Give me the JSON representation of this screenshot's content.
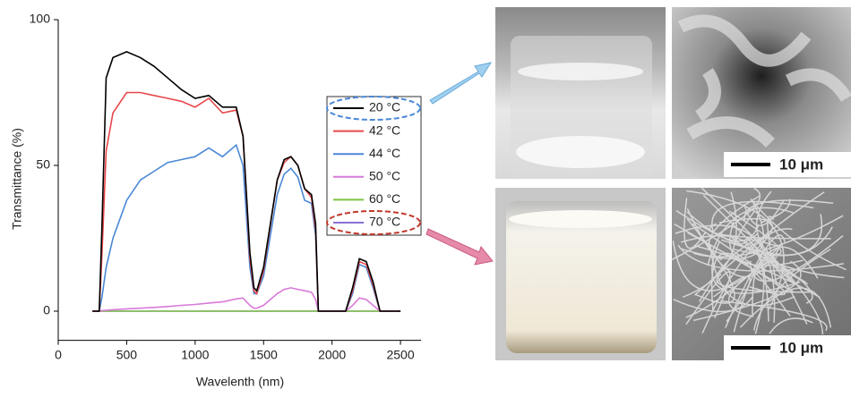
{
  "chart_data": {
    "type": "line",
    "x_label": "Wavelenth (nm)",
    "y_label": "Transmittance (%)",
    "x": [
      250,
      300,
      320,
      350,
      400,
      500,
      600,
      700,
      800,
      900,
      1000,
      1100,
      1200,
      1300,
      1350,
      1400,
      1430,
      1450,
      1500,
      1600,
      1650,
      1700,
      1750,
      1800,
      1850,
      1880,
      1900,
      1950,
      2000,
      2050,
      2100,
      2150,
      2200,
      2250,
      2300,
      2350,
      2400,
      2450,
      2500
    ],
    "series": [
      {
        "name": "20 °C",
        "color": "#000000",
        "values": [
          0,
          0,
          30,
          80,
          87,
          89,
          87,
          84,
          80,
          76,
          73,
          74,
          70,
          70,
          60,
          20,
          8,
          7,
          15,
          45,
          52,
          53,
          50,
          42,
          40,
          30,
          0,
          0,
          0,
          0,
          0,
          8,
          18,
          17,
          10,
          0,
          0,
          0,
          0
        ]
      },
      {
        "name": "42 °C",
        "color": "#e8474a",
        "values": [
          0,
          0,
          20,
          55,
          68,
          75,
          75,
          74,
          73,
          72,
          70,
          73,
          68,
          69,
          60,
          18,
          7,
          6,
          14,
          45,
          51,
          53,
          50,
          42,
          39,
          28,
          0,
          0,
          0,
          0,
          0,
          7,
          17,
          16,
          9,
          0,
          0,
          0,
          0
        ]
      },
      {
        "name": "44 °C",
        "color": "#4a88d6",
        "values": [
          0,
          0,
          5,
          15,
          25,
          38,
          45,
          48,
          51,
          52,
          53,
          56,
          53,
          57,
          50,
          15,
          6,
          6,
          12,
          40,
          47,
          49,
          46,
          38,
          37,
          26,
          0,
          0,
          0,
          0,
          0,
          6,
          16,
          15,
          8,
          0,
          0,
          0,
          0
        ]
      },
      {
        "name": "50 °C",
        "color": "#d87ad8",
        "values": [
          0,
          0,
          0.2,
          0.3,
          0.5,
          0.8,
          1,
          1.3,
          1.6,
          2,
          2.3,
          2.8,
          3.2,
          4.2,
          4.5,
          2,
          1,
          1,
          2,
          6,
          7.5,
          8,
          7.5,
          7,
          6.5,
          4,
          0,
          0,
          0,
          0,
          0,
          2,
          4.5,
          4,
          2,
          0,
          0,
          0,
          0
        ]
      },
      {
        "name": "60 °C",
        "color": "#7cc242",
        "values": [
          0,
          0,
          0,
          0,
          0,
          0,
          0,
          0,
          0,
          0,
          0,
          0,
          0,
          0,
          0,
          0,
          0,
          0,
          0,
          0,
          0,
          0,
          0,
          0,
          0,
          0,
          0,
          0,
          0,
          0,
          0,
          0,
          0,
          0,
          0,
          0,
          0,
          0,
          0
        ]
      },
      {
        "name": "70 °C",
        "color": "#8a70d6",
        "values": [
          0,
          0,
          0,
          0,
          0,
          0,
          0,
          0,
          0,
          0,
          0,
          0,
          0,
          0,
          0,
          0,
          0,
          0,
          0,
          0,
          0,
          0,
          0,
          0,
          0,
          0,
          0,
          0,
          0,
          0,
          0,
          0,
          0,
          0,
          0,
          0,
          0,
          0,
          0
        ]
      }
    ],
    "xlim": [
      0,
      2650
    ],
    "ylim": [
      -10,
      100
    ],
    "xticks": [
      0,
      500,
      1000,
      1500,
      2000,
      2500
    ],
    "yticks": [
      0,
      50,
      100
    ],
    "legend": "center-right"
  },
  "images": {
    "scale_labels": [
      "10 μm",
      "10 μm"
    ]
  }
}
